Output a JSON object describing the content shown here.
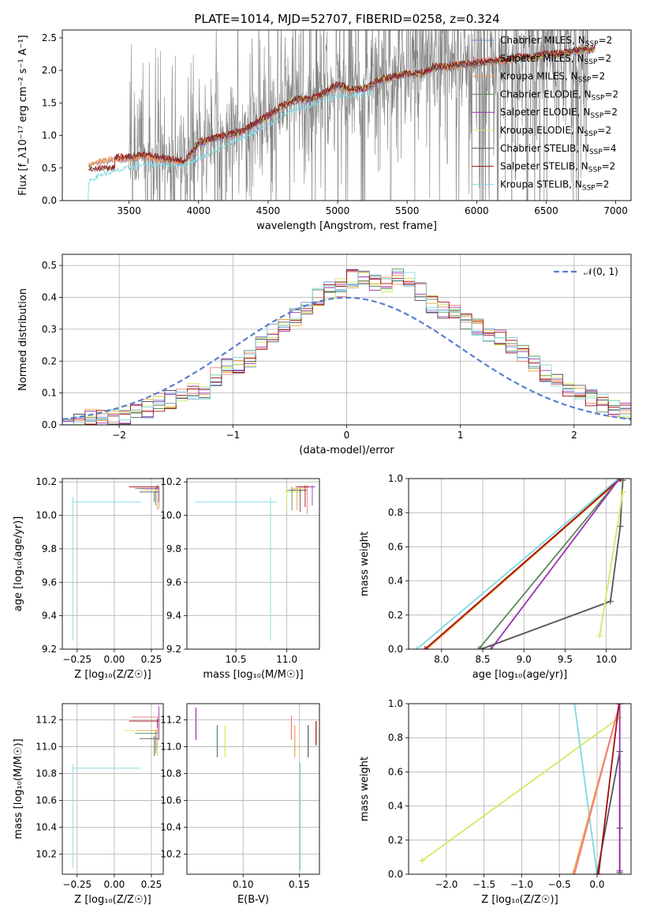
{
  "title": "PLATE=1014, MJD=52707, FIBERID=0258, z=0.324",
  "colors": {
    "chabrier_miles": "#6b8fd6",
    "salpeter_miles": "#f08080",
    "kroupa_miles": "#f0a040",
    "chabrier_elodie": "#5a8a5a",
    "salpeter_elodie": "#9a30b0",
    "kroupa_elodie": "#d4e860",
    "chabrier_stelib": "#555555",
    "salpeter_stelib": "#a01010",
    "kroupa_stelib": "#80d8e0",
    "data": "#808080",
    "gaussian": "#5a7fd0",
    "grid": "#b0b0b0"
  },
  "chart_data": [
    {
      "id": "spectrum",
      "type": "line",
      "xlabel": "wavelength [Angstrom, rest frame]",
      "ylabel": "Flux [f_λ10⁻¹⁷ erg cm⁻² s⁻¹ A⁻¹]",
      "xlim": [
        3020,
        7110
      ],
      "ylim": [
        0,
        2.62
      ],
      "xticks": [
        3500,
        4000,
        4500,
        5000,
        5500,
        6000,
        6500,
        7000
      ],
      "yticks": [
        0.0,
        0.5,
        1.0,
        1.5,
        2.0,
        2.5
      ],
      "grid": false,
      "legend_placement": "top-right",
      "legend": [
        {
          "name": "Chabrier MILES, N",
          "sub": "SSP",
          "suffix": "=2",
          "color_key": "chabrier_miles"
        },
        {
          "name": "Salpeter MILES, N",
          "sub": "SSP",
          "suffix": "=2",
          "color_key": "salpeter_miles"
        },
        {
          "name": "Kroupa MILES, N",
          "sub": "SSP",
          "suffix": "=2",
          "color_key": "kroupa_miles"
        },
        {
          "name": "Chabrier ELODIE, N",
          "sub": "SSP",
          "suffix": "=2",
          "color_key": "chabrier_elodie"
        },
        {
          "name": "Salpeter ELODIE, N",
          "sub": "SSP",
          "suffix": "=2",
          "color_key": "salpeter_elodie"
        },
        {
          "name": "Kroupa ELODIE, N",
          "sub": "SSP",
          "suffix": "=2",
          "color_key": "kroupa_elodie"
        },
        {
          "name": "Chabrier STELIB, N",
          "sub": "SSP",
          "suffix": "=4",
          "color_key": "chabrier_stelib"
        },
        {
          "name": "Salpeter STELIB, N",
          "sub": "SSP",
          "suffix": "=2",
          "color_key": "salpeter_stelib"
        },
        {
          "name": "Kroupa STELIB, N",
          "sub": "SSP",
          "suffix": "=2",
          "color_key": "kroupa_stelib"
        }
      ],
      "model_continuum": [
        [
          3200,
          0.55
        ],
        [
          3300,
          0.62
        ],
        [
          3400,
          0.65
        ],
        [
          3500,
          0.66
        ],
        [
          3600,
          0.7
        ],
        [
          3700,
          0.66
        ],
        [
          3800,
          0.62
        ],
        [
          3900,
          0.6
        ],
        [
          4000,
          0.88
        ],
        [
          4100,
          0.95
        ],
        [
          4200,
          1.0
        ],
        [
          4300,
          1.05
        ],
        [
          4400,
          1.18
        ],
        [
          4500,
          1.3
        ],
        [
          4600,
          1.45
        ],
        [
          4700,
          1.55
        ],
        [
          4800,
          1.55
        ],
        [
          4900,
          1.65
        ],
        [
          5000,
          1.78
        ],
        [
          5100,
          1.7
        ],
        [
          5200,
          1.72
        ],
        [
          5300,
          1.85
        ],
        [
          5400,
          1.9
        ],
        [
          5500,
          1.95
        ],
        [
          5600,
          1.95
        ],
        [
          5700,
          2.05
        ],
        [
          5800,
          2.05
        ],
        [
          5900,
          2.1
        ],
        [
          6000,
          2.1
        ],
        [
          6100,
          2.15
        ],
        [
          6200,
          2.15
        ],
        [
          6300,
          2.2
        ],
        [
          6400,
          2.2
        ],
        [
          6500,
          2.25
        ],
        [
          6600,
          2.25
        ],
        [
          6700,
          2.3
        ],
        [
          6800,
          2.32
        ]
      ],
      "stelib_kroupa_continuum": [
        [
          3200,
          0.0
        ],
        [
          3210,
          0.3
        ],
        [
          3300,
          0.4
        ],
        [
          3400,
          0.45
        ],
        [
          3500,
          0.5
        ],
        [
          3600,
          0.55
        ],
        [
          3700,
          0.55
        ],
        [
          3800,
          0.55
        ],
        [
          3900,
          0.55
        ],
        [
          4000,
          0.65
        ],
        [
          4100,
          0.75
        ],
        [
          4200,
          0.85
        ],
        [
          4300,
          0.95
        ],
        [
          4400,
          1.05
        ],
        [
          4500,
          1.15
        ],
        [
          4600,
          1.3
        ],
        [
          4700,
          1.4
        ],
        [
          4800,
          1.45
        ],
        [
          4900,
          1.55
        ],
        [
          5000,
          1.6
        ],
        [
          5100,
          1.6
        ],
        [
          5200,
          1.65
        ]
      ],
      "data_start": 3500,
      "data_end": 6800
    },
    {
      "id": "residuals",
      "type": "area",
      "xlabel": "(data-model)/error",
      "ylabel": "Normed distribution",
      "xlim": [
        -2.5,
        2.5
      ],
      "ylim": [
        0,
        0.535
      ],
      "xticks": [
        -2,
        -1,
        0,
        1,
        2
      ],
      "yticks": [
        0.0,
        0.1,
        0.2,
        0.3,
        0.4,
        0.5
      ],
      "grid": true,
      "legend_placement": "top-right",
      "gaussian_label": "𝒩(0, 1)",
      "bin_edges_start": -2.5,
      "bin_width": 0.1,
      "hist_base": [
        0.01,
        0.01,
        0.02,
        0.02,
        0.02,
        0.03,
        0.04,
        0.05,
        0.07,
        0.08,
        0.09,
        0.1,
        0.11,
        0.15,
        0.18,
        0.19,
        0.21,
        0.25,
        0.29,
        0.32,
        0.34,
        0.37,
        0.4,
        0.42,
        0.43,
        0.46,
        0.47,
        0.45,
        0.44,
        0.47,
        0.45,
        0.42,
        0.38,
        0.36,
        0.36,
        0.33,
        0.31,
        0.29,
        0.27,
        0.25,
        0.22,
        0.19,
        0.16,
        0.14,
        0.12,
        0.1,
        0.09,
        0.07,
        0.05,
        0.04
      ]
    },
    {
      "id": "z-age",
      "type": "scatter",
      "xlabel": "Z [log₁₀(Z/Z☉)]",
      "ylabel": "age  [log₁₀(age/yr)]",
      "xlim": [
        -0.35,
        0.33
      ],
      "ylim": [
        9.2,
        10.22
      ],
      "xticks": [
        -0.25,
        0.0,
        0.25
      ],
      "yticks": [
        9.2,
        9.4,
        9.6,
        9.8,
        10.0,
        10.2
      ],
      "grid": true
    },
    {
      "id": "mass-age",
      "type": "scatter",
      "xlabel": "mass [log₁₀(M/M☉)]",
      "ylabel": "",
      "xlim": [
        10.02,
        11.32
      ],
      "ylim": [
        9.2,
        10.22
      ],
      "xticks": [
        10.5,
        11.0
      ],
      "yticks": [
        9.2,
        9.4,
        9.6,
        9.8,
        10.0,
        10.2
      ],
      "grid": true
    },
    {
      "id": "age-massweight",
      "type": "line",
      "xlabel": "age  [log₁₀(age/yr)]",
      "ylabel": "mass weight",
      "xlim": [
        7.6,
        10.3
      ],
      "ylim": [
        0,
        1.0
      ],
      "xticks": [
        8.0,
        8.5,
        9.0,
        9.5,
        10.0
      ],
      "yticks": [
        0.0,
        0.2,
        0.4,
        0.6,
        0.8,
        1.0
      ],
      "grid": true,
      "series": [
        {
          "color_key": "kroupa_stelib",
          "x": [
            7.7,
            10.15
          ],
          "y": [
            0.0,
            1.0
          ]
        },
        {
          "color_key": "salpeter_miles",
          "x": [
            7.8,
            10.18
          ],
          "y": [
            0.0,
            1.0
          ]
        },
        {
          "color_key": "kroupa_miles",
          "x": [
            7.82,
            10.18
          ],
          "y": [
            0.0,
            1.0
          ]
        },
        {
          "color_key": "salpeter_stelib",
          "x": [
            7.8,
            10.17
          ],
          "y": [
            0.0,
            1.0
          ]
        },
        {
          "color_key": "chabrier_elodie",
          "x": [
            8.45,
            10.16
          ],
          "y": [
            0.0,
            1.0
          ]
        },
        {
          "color_key": "salpeter_elodie",
          "x": [
            8.6,
            10.16
          ],
          "y": [
            0.0,
            1.0
          ]
        },
        {
          "color_key": "chabrier_stelib",
          "x": [
            8.48,
            10.05,
            10.17,
            10.2
          ],
          "y": [
            0.0,
            0.28,
            0.72,
            0.99
          ]
        },
        {
          "color_key": "kroupa_elodie",
          "x": [
            9.92,
            10.2
          ],
          "y": [
            0.08,
            0.92
          ]
        }
      ]
    },
    {
      "id": "z-mass",
      "type": "scatter",
      "xlabel": "Z [log₁₀(Z/Z☉)]",
      "ylabel": "mass [log₁₀(M/M☉)]",
      "xlim": [
        -0.35,
        0.33
      ],
      "ylim": [
        10.05,
        11.32
      ],
      "xticks": [
        -0.25,
        0.0,
        0.25
      ],
      "yticks": [
        10.2,
        10.4,
        10.6,
        10.8,
        11.0,
        11.2
      ],
      "grid": true
    },
    {
      "id": "ebv-mass",
      "type": "scatter",
      "xlabel": "E(B-V)",
      "ylabel": "",
      "xlim": [
        0.05,
        0.168
      ],
      "ylim": [
        10.05,
        11.32
      ],
      "xticks": [
        0.1,
        0.15
      ],
      "yticks": [
        10.2,
        10.4,
        10.6,
        10.8,
        11.0,
        11.2
      ],
      "grid": true,
      "points": [
        {
          "color_key": "salpeter_elodie",
          "x": 0.058,
          "y": 11.17,
          "yerr": 0.12
        },
        {
          "color_key": "chabrier_elodie",
          "x": 0.077,
          "y": 11.04,
          "yerr": 0.12
        },
        {
          "color_key": "kroupa_elodie",
          "x": 0.084,
          "y": 11.04,
          "yerr": 0.12
        },
        {
          "color_key": "salpeter_miles",
          "x": 0.143,
          "y": 11.14,
          "yerr": 0.09
        },
        {
          "color_key": "kroupa_miles",
          "x": 0.146,
          "y": 11.04,
          "yerr": 0.12
        },
        {
          "color_key": "kroupa_stelib",
          "x": 0.151,
          "y": 10.48,
          "yerr": 0.4
        },
        {
          "color_key": "chabrier_stelib",
          "x": 0.158,
          "y": 11.04,
          "yerr": 0.12
        },
        {
          "color_key": "salpeter_stelib",
          "x": 0.165,
          "y": 11.1,
          "yerr": 0.09
        }
      ]
    },
    {
      "id": "z-massweight",
      "type": "line",
      "xlabel": "Z [log₁₀(Z/Z☉)]",
      "ylabel": "mass weight",
      "xlim": [
        -2.5,
        0.45
      ],
      "ylim": [
        0,
        1.0
      ],
      "xticks": [
        -2.0,
        -1.5,
        -1.0,
        -0.5,
        0.0
      ],
      "yticks": [
        0.0,
        0.2,
        0.4,
        0.6,
        0.8,
        1.0
      ],
      "grid": true,
      "series": [
        {
          "color_key": "kroupa_elodie",
          "x": [
            -2.32,
            0.3
          ],
          "y": [
            0.08,
            0.92
          ]
        },
        {
          "color_key": "kroupa_stelib",
          "x": [
            -0.3,
            0.0
          ],
          "y": [
            1.0,
            0.0
          ]
        },
        {
          "color_key": "kroupa_miles",
          "x": [
            -0.32,
            0.3
          ],
          "y": [
            0.0,
            1.0
          ]
        },
        {
          "color_key": "salpeter_miles",
          "x": [
            -0.3,
            0.3
          ],
          "y": [
            0.0,
            1.0
          ]
        },
        {
          "color_key": "chabrier_stelib",
          "x": [
            0.0,
            0.3,
            0.3,
            0.3
          ],
          "y": [
            0.0,
            0.72,
            0.27,
            0.01
          ]
        },
        {
          "color_key": "salpeter_elodie",
          "x": [
            0.3,
            0.3
          ],
          "y": [
            0.02,
            1.0
          ]
        },
        {
          "color_key": "salpeter_stelib",
          "x": [
            0.02,
            0.29
          ],
          "y": [
            0.0,
            1.0
          ]
        }
      ]
    }
  ]
}
